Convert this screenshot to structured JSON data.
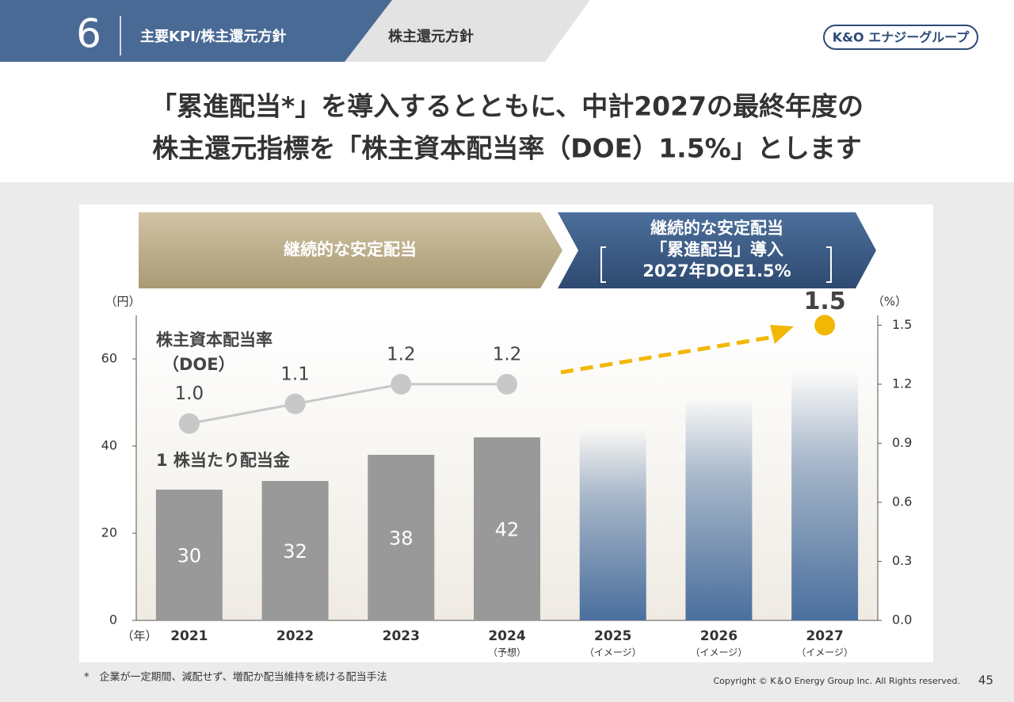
{
  "header": {
    "section_number": "6",
    "section": "主要KPI/株主還元方針",
    "subsection": "株主還元方針",
    "logo": "K&O エナジーグループ"
  },
  "headline": [
    "「累進配当*」を導入するとともに、中計2027の最終年度の",
    "株主還元指標を「株主資本配当率（DOE）1.5%」とします"
  ],
  "chart_data": {
    "type": "bar",
    "banners": [
      {
        "lines": [
          "継続的な安定配当"
        ]
      },
      {
        "lines": [
          "継続的な安定配当",
          "「累進配当」導入",
          "2027年DOE1.5%"
        ]
      }
    ],
    "categories": [
      "2021",
      "2022",
      "2023",
      "2024",
      "2025",
      "2026",
      "2027"
    ],
    "category_notes": [
      null,
      null,
      null,
      "（予想）",
      "（イメージ）",
      "（イメージ）",
      "（イメージ）"
    ],
    "x_unit": "（年）",
    "y_unit": "（円）",
    "y2_unit": "（%）",
    "ylim": [
      0,
      70
    ],
    "yticks": [
      0,
      20,
      40,
      60
    ],
    "y2lim": [
      0,
      1.55
    ],
    "y2ticks": [
      {
        "value": 0,
        "label": "0.0"
      },
      0.3,
      0.6,
      0.9,
      1.2,
      1.5
    ],
    "series": [
      {
        "name": "1 株当たり配当金",
        "values": [
          30,
          32,
          38,
          42,
          44,
          51,
          57
        ],
        "value_labels": [
          "30",
          "32",
          "38",
          "42",
          null,
          null,
          null
        ],
        "colors": [
          "#999999",
          "#999999",
          "#999999",
          "#999999",
          "#4a6f9e",
          "#4a6f9e",
          "#4a6f9e"
        ],
        "faded": [
          false,
          false,
          false,
          false,
          true,
          true,
          true
        ]
      },
      {
        "name_lines": [
          "株主資本配当率",
          "（DOE）"
        ],
        "axis": "y2",
        "color": "#c8c8c8",
        "values": [
          1.0,
          1.1,
          1.2,
          1.2,
          null,
          null,
          1.5
        ],
        "value_labels": [
          "1.0",
          "1.1",
          "1.2",
          "1.2",
          null,
          null,
          "1.5"
        ],
        "point_colors": [
          "#c8c8c8",
          "#c8c8c8",
          "#c8c8c8",
          "#c8c8c8",
          null,
          null,
          "#f2b705"
        ]
      }
    ]
  },
  "footnote": "*　企業が一定期間、減配せず、増配か配当維持を続ける配当手法",
  "copyright": "Copyright ©  K＆O Energy Group Inc. All Rights reserved.",
  "page_number": "45"
}
